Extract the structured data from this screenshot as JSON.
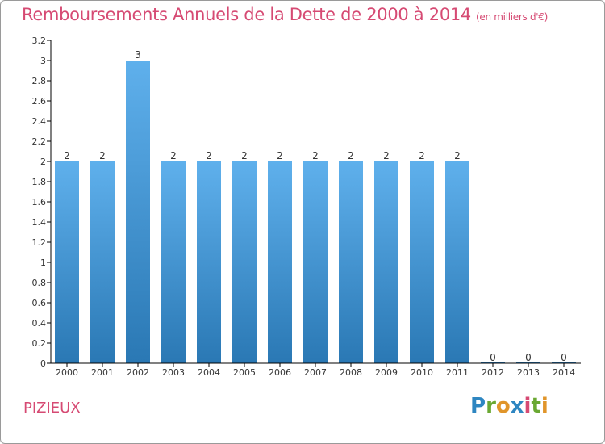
{
  "title": "Remboursements Annuels de la Dette de 2000 à 2014",
  "unit_label": "(en milliers d'€)",
  "commune": "PIZIEUX",
  "logo": {
    "letters": [
      "P",
      "r",
      "o",
      "x",
      "i",
      "t",
      "i"
    ],
    "colors": [
      "#2e86c1",
      "#6aa832",
      "#e0952a",
      "#2e86c1",
      "#d64a73",
      "#6aa832",
      "#e0952a"
    ]
  },
  "colors": {
    "title": "#d64a73",
    "bar_top": "#5fb0ec",
    "bar_bottom": "#2a78b4",
    "axis": "#000000"
  },
  "chart_data": {
    "type": "bar",
    "title": "Remboursements Annuels de la Dette de 2000 à 2014",
    "categories": [
      "2000",
      "2001",
      "2002",
      "2003",
      "2004",
      "2005",
      "2006",
      "2007",
      "2008",
      "2009",
      "2010",
      "2011",
      "2012",
      "2013",
      "2014"
    ],
    "values": [
      2,
      2,
      3,
      2,
      2,
      2,
      2,
      2,
      2,
      2,
      2,
      2,
      0,
      0,
      0
    ],
    "data_labels": [
      "2",
      "2",
      "3",
      "2",
      "2",
      "2",
      "2",
      "2",
      "2",
      "2",
      "2",
      "2",
      "0",
      "0",
      "0"
    ],
    "yticks": [
      "0",
      "0.2",
      "0.4",
      "0.6",
      "0.8",
      "1",
      "1.2",
      "1.4",
      "1.6",
      "1.8",
      "2",
      "2.2",
      "2.4",
      "2.6",
      "2.8",
      "3",
      "3.2"
    ],
    "ytick_values": [
      0,
      0.2,
      0.4,
      0.6,
      0.8,
      1,
      1.2,
      1.4,
      1.6,
      1.8,
      2,
      2.2,
      2.4,
      2.6,
      2.8,
      3,
      3.2
    ],
    "ylim": [
      0,
      3.2
    ],
    "xlabel": "",
    "ylabel": "",
    "grid": false,
    "legend": "none"
  }
}
